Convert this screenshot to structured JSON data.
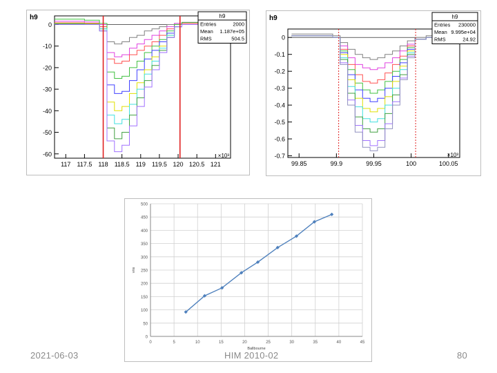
{
  "footer": {
    "date": "2021-06-03",
    "title": "HIM 2010-02",
    "page": "80"
  },
  "chart_data": [
    {
      "type": "line",
      "title": "h9",
      "stats": {
        "name": "h9",
        "rows": [
          {
            "label": "Entries",
            "value": "2000"
          },
          {
            "label": "Mean",
            "value": "1.187e+05"
          },
          {
            "label": "RMS",
            "value": "504.5"
          }
        ]
      },
      "x_exponent_label": "×10³",
      "xlim": [
        116.7,
        121.4
      ],
      "ylim": [
        -62,
        4
      ],
      "x_ticks": [
        "117",
        "117.5",
        "118",
        "118.5",
        "119",
        "119.5",
        "120",
        "120.5",
        "121"
      ],
      "y_ticks": [
        "0",
        "-10",
        "-20",
        "-30",
        "-40",
        "-50",
        "-60"
      ],
      "markers": [
        118.0,
        120.05
      ],
      "series": [
        {
          "color": "#808080",
          "x": [
            116.7,
            117.0,
            117.5,
            117.9,
            118.1,
            118.3,
            118.5,
            118.7,
            118.9,
            119.1,
            119.3,
            119.5,
            119.7,
            119.9,
            120.1,
            121.4
          ],
          "y": [
            0.5,
            0.5,
            0.3,
            -1,
            -8,
            -9,
            -8,
            -6,
            -5,
            -3,
            -2,
            -1,
            0,
            0.5,
            0.5,
            0.5
          ]
        },
        {
          "color": "#e040e0",
          "x": [
            116.7,
            117.0,
            117.5,
            117.9,
            118.1,
            118.3,
            118.5,
            118.7,
            118.9,
            119.1,
            119.3,
            119.5,
            119.7,
            119.9,
            120.1,
            121.4
          ],
          "y": [
            1.5,
            1.5,
            1.2,
            0,
            -13,
            -15,
            -14,
            -11,
            -9,
            -7,
            -5,
            -3,
            -1,
            0.5,
            1,
            1
          ]
        },
        {
          "color": "#ff5050",
          "x": [
            116.7,
            117.0,
            117.5,
            117.9,
            118.1,
            118.3,
            118.5,
            118.7,
            118.9,
            119.1,
            119.3,
            119.5,
            119.7,
            119.9,
            120.1,
            121.4
          ],
          "y": [
            0.8,
            0.8,
            0.6,
            -1,
            -16,
            -18,
            -17,
            -14,
            -12,
            -10,
            -8,
            -5,
            -2,
            0,
            0.5,
            0.5
          ]
        },
        {
          "color": "#40c040",
          "x": [
            116.7,
            117.0,
            117.5,
            117.9,
            118.1,
            118.3,
            118.5,
            118.7,
            118.9,
            119.1,
            119.3,
            119.5,
            119.7,
            119.9,
            120.1,
            121.4
          ],
          "y": [
            2.5,
            2.5,
            2,
            0.5,
            -22,
            -25,
            -24,
            -20,
            -17,
            -13,
            -10,
            -7,
            -3,
            0,
            1,
            1.5
          ]
        },
        {
          "color": "#4040ff",
          "x": [
            116.7,
            117.0,
            117.5,
            117.9,
            118.1,
            118.3,
            118.5,
            118.7,
            118.9,
            119.1,
            119.3,
            119.5,
            119.7,
            119.9,
            120.1,
            121.4
          ],
          "y": [
            0.3,
            0.3,
            0.1,
            -2,
            -28,
            -32,
            -31,
            -26,
            -21,
            -16,
            -12,
            -8,
            -4,
            -1,
            0,
            0
          ]
        },
        {
          "color": "#e0e000",
          "x": [
            116.7,
            117.0,
            117.5,
            117.9,
            118.1,
            118.3,
            118.5,
            118.7,
            118.9,
            119.1,
            119.3,
            119.5,
            119.7,
            119.9,
            120.1,
            121.4
          ],
          "y": [
            0.6,
            0.6,
            0.4,
            -2,
            -36,
            -40,
            -38,
            -32,
            -27,
            -21,
            -15,
            -10,
            -5,
            -1,
            0,
            0.3
          ]
        },
        {
          "color": "#40e0e0",
          "x": [
            116.7,
            117.0,
            117.5,
            117.9,
            118.1,
            118.3,
            118.5,
            118.7,
            118.9,
            119.1,
            119.3,
            119.5,
            119.7,
            119.9,
            120.1,
            121.4
          ],
          "y": [
            0.2,
            0.2,
            0,
            -2,
            -42,
            -46,
            -44,
            -37,
            -30,
            -23,
            -17,
            -11,
            -5,
            -1,
            0,
            0
          ]
        },
        {
          "color": "#40a040",
          "x": [
            116.7,
            117.0,
            117.5,
            117.9,
            118.1,
            118.3,
            118.5,
            118.7,
            118.9,
            119.1,
            119.3,
            119.5,
            119.7,
            119.9,
            120.1,
            121.4
          ],
          "y": [
            0.4,
            0.4,
            0.2,
            -3,
            -48,
            -53,
            -50,
            -42,
            -34,
            -26,
            -19,
            -12,
            -6,
            -1,
            0,
            0.2
          ]
        },
        {
          "color": "#a070ff",
          "x": [
            116.7,
            117.0,
            117.5,
            117.9,
            118.1,
            118.3,
            118.5,
            118.7,
            118.9,
            119.1,
            119.3,
            119.5,
            119.7,
            119.9,
            120.1,
            121.4
          ],
          "y": [
            0.1,
            0.1,
            0,
            -3,
            -54,
            -59,
            -56,
            -47,
            -38,
            -29,
            -21,
            -13,
            -6,
            -1,
            0,
            0
          ]
        }
      ]
    },
    {
      "type": "line",
      "title": "h9",
      "stats": {
        "name": "h9",
        "rows": [
          {
            "label": "Entries",
            "value": "230000"
          },
          {
            "label": "Mean",
            "value": "9.995e+04"
          },
          {
            "label": "RMS",
            "value": "24.92"
          }
        ]
      },
      "x_exponent_label": "×10³",
      "xlim": [
        99.835,
        100.065
      ],
      "ylim": [
        -0.71,
        0.05
      ],
      "x_ticks": [
        "99.85",
        "99.9",
        "99.95",
        "100",
        "100.05"
      ],
      "y_ticks": [
        "0",
        "-0.1",
        "-0.2",
        "-0.3",
        "-0.4",
        "-0.5",
        "-0.6",
        "-0.7"
      ],
      "markers": [
        99.903,
        100.006
      ],
      "series": [
        {
          "color": "#808080",
          "x": [
            99.84,
            99.88,
            99.895,
            99.905,
            99.915,
            99.925,
            99.935,
            99.945,
            99.955,
            99.965,
            99.975,
            99.985,
            99.995,
            100.005,
            100.02,
            100.04,
            100.06
          ],
          "y": [
            0.02,
            0.02,
            0.01,
            -0.03,
            -0.07,
            -0.1,
            -0.12,
            -0.13,
            -0.12,
            -0.1,
            -0.08,
            -0.05,
            -0.02,
            0,
            0.01,
            0.01,
            0.01
          ]
        },
        {
          "color": "#e040e0",
          "x": [
            99.84,
            99.88,
            99.895,
            99.905,
            99.915,
            99.925,
            99.935,
            99.945,
            99.955,
            99.965,
            99.975,
            99.985,
            99.995,
            100.005,
            100.02,
            100.04,
            100.06
          ],
          "y": [
            0.01,
            0.01,
            0,
            -0.05,
            -0.12,
            -0.16,
            -0.18,
            -0.19,
            -0.18,
            -0.15,
            -0.12,
            -0.08,
            -0.04,
            -0.01,
            0,
            0,
            0
          ]
        },
        {
          "color": "#ff5050",
          "x": [
            99.84,
            99.88,
            99.895,
            99.905,
            99.915,
            99.925,
            99.935,
            99.945,
            99.955,
            99.965,
            99.975,
            99.985,
            99.995,
            100.005,
            100.02,
            100.04,
            100.06
          ],
          "y": [
            0.01,
            0.01,
            0,
            -0.07,
            -0.16,
            -0.22,
            -0.26,
            -0.27,
            -0.25,
            -0.21,
            -0.16,
            -0.11,
            -0.05,
            -0.01,
            0,
            0,
            0
          ]
        },
        {
          "color": "#40c040",
          "x": [
            99.84,
            99.88,
            99.895,
            99.905,
            99.915,
            99.925,
            99.935,
            99.945,
            99.955,
            99.965,
            99.975,
            99.985,
            99.995,
            100.005,
            100.02,
            100.04,
            100.06
          ],
          "y": [
            0.01,
            0.01,
            0,
            -0.08,
            -0.19,
            -0.27,
            -0.31,
            -0.33,
            -0.31,
            -0.26,
            -0.2,
            -0.13,
            -0.06,
            -0.01,
            0,
            0,
            0
          ]
        },
        {
          "color": "#4040ff",
          "x": [
            99.84,
            99.88,
            99.895,
            99.905,
            99.915,
            99.925,
            99.935,
            99.945,
            99.955,
            99.965,
            99.975,
            99.985,
            99.995,
            100.005,
            100.02,
            100.04,
            100.06
          ],
          "y": [
            0.01,
            0.01,
            0,
            -0.09,
            -0.22,
            -0.31,
            -0.36,
            -0.38,
            -0.36,
            -0.3,
            -0.23,
            -0.15,
            -0.07,
            -0.01,
            0,
            0,
            0
          ]
        },
        {
          "color": "#e0e000",
          "x": [
            99.84,
            99.88,
            99.895,
            99.905,
            99.915,
            99.925,
            99.935,
            99.945,
            99.955,
            99.965,
            99.975,
            99.985,
            99.995,
            100.005,
            100.02,
            100.04,
            100.06
          ],
          "y": [
            0.01,
            0.01,
            0,
            -0.1,
            -0.25,
            -0.36,
            -0.42,
            -0.44,
            -0.42,
            -0.35,
            -0.26,
            -0.17,
            -0.08,
            -0.01,
            0,
            0,
            0
          ]
        },
        {
          "color": "#40e0e0",
          "x": [
            99.84,
            99.88,
            99.895,
            99.905,
            99.915,
            99.925,
            99.935,
            99.945,
            99.955,
            99.965,
            99.975,
            99.985,
            99.995,
            100.005,
            100.02,
            100.04,
            100.06
          ],
          "y": [
            0.01,
            0.01,
            0,
            -0.12,
            -0.29,
            -0.41,
            -0.48,
            -0.5,
            -0.48,
            -0.4,
            -0.3,
            -0.19,
            -0.09,
            -0.01,
            0,
            0,
            0
          ]
        },
        {
          "color": "#40a040",
          "x": [
            99.84,
            99.88,
            99.895,
            99.905,
            99.915,
            99.925,
            99.935,
            99.945,
            99.955,
            99.965,
            99.975,
            99.985,
            99.995,
            100.005,
            100.02,
            100.04,
            100.06
          ],
          "y": [
            0.01,
            0.01,
            0,
            -0.13,
            -0.33,
            -0.47,
            -0.54,
            -0.56,
            -0.54,
            -0.45,
            -0.34,
            -0.22,
            -0.1,
            -0.01,
            0,
            0,
            0
          ]
        },
        {
          "color": "#a070ff",
          "x": [
            99.84,
            99.88,
            99.895,
            99.905,
            99.915,
            99.925,
            99.935,
            99.945,
            99.955,
            99.965,
            99.975,
            99.985,
            99.995,
            100.005,
            100.02,
            100.04,
            100.06
          ],
          "y": [
            0.01,
            0.01,
            0,
            -0.15,
            -0.37,
            -0.52,
            -0.61,
            -0.64,
            -0.61,
            -0.51,
            -0.38,
            -0.24,
            -0.11,
            -0.01,
            0,
            0,
            0
          ]
        },
        {
          "color": "#9090c0",
          "x": [
            99.84,
            99.88,
            99.895,
            99.905,
            99.915,
            99.925,
            99.935,
            99.945,
            99.955,
            99.965,
            99.975,
            99.985,
            99.995,
            100.005,
            100.02,
            100.04,
            100.06
          ],
          "y": [
            0.01,
            0.01,
            0,
            -0.16,
            -0.4,
            -0.56,
            -0.65,
            -0.67,
            -0.65,
            -0.54,
            -0.4,
            -0.25,
            -0.12,
            -0.01,
            0,
            0,
            0
          ]
        }
      ]
    },
    {
      "type": "line",
      "xlabel": "Ballbourne",
      "ylabel": "vns",
      "xlim": [
        0,
        45
      ],
      "ylim": [
        0,
        500
      ],
      "x_ticks": [
        0,
        5,
        10,
        15,
        20,
        25,
        30,
        35,
        40,
        45
      ],
      "y_ticks": [
        0,
        50,
        100,
        150,
        200,
        250,
        300,
        350,
        400,
        450,
        500
      ],
      "grid": true,
      "series": [
        {
          "color": "#4f81bd",
          "x": [
            7.5,
            11.5,
            15.2,
            19.3,
            22.8,
            27.0,
            31.0,
            34.8,
            38.5
          ],
          "y": [
            92,
            153,
            183,
            240,
            280,
            335,
            378,
            432,
            460
          ]
        }
      ]
    }
  ]
}
